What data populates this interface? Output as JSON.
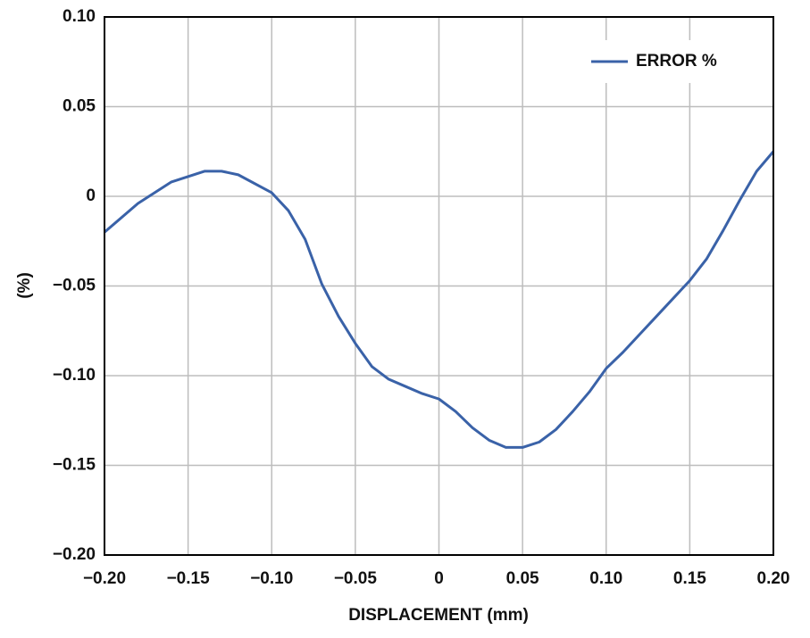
{
  "chart_data": {
    "type": "line",
    "xlabel": "DISPLACEMENT (mm)",
    "ylabel": "(%)",
    "x": [
      -0.2,
      -0.18,
      -0.16,
      -0.14,
      -0.13,
      -0.12,
      -0.1,
      -0.09,
      -0.08,
      -0.07,
      -0.06,
      -0.05,
      -0.04,
      -0.03,
      -0.02,
      -0.01,
      0,
      0.01,
      0.02,
      0.03,
      0.04,
      0.05,
      0.06,
      0.07,
      0.08,
      0.09,
      0.1,
      0.11,
      0.12,
      0.13,
      0.14,
      0.15,
      0.16,
      0.17,
      0.18,
      0.19,
      0.2
    ],
    "series": [
      {
        "name": "ERROR %",
        "color": "#3a62a8",
        "values": [
          -0.02,
          -0.004,
          0.008,
          0.014,
          0.014,
          0.012,
          0.002,
          -0.008,
          -0.024,
          -0.049,
          -0.067,
          -0.082,
          -0.095,
          -0.102,
          -0.106,
          -0.11,
          -0.113,
          -0.12,
          -0.129,
          -0.136,
          -0.14,
          -0.14,
          -0.137,
          -0.13,
          -0.12,
          -0.109,
          -0.096,
          -0.087,
          -0.077,
          -0.067,
          -0.057,
          -0.047,
          -0.035,
          -0.019,
          -0.002,
          0.014,
          0.025
        ]
      }
    ],
    "xlim": [
      -0.2,
      0.2
    ],
    "xticks": [
      {
        "value": -0.2,
        "label": "−0.20"
      },
      {
        "value": -0.15,
        "label": "−0.15"
      },
      {
        "value": -0.1,
        "label": "−0.10"
      },
      {
        "value": -0.05,
        "label": "−0.05"
      },
      0,
      0.05,
      {
        "value": 0.1,
        "label": "0.10"
      },
      0.15,
      {
        "value": 0.2,
        "label": "0.20"
      }
    ],
    "ylim": [
      -0.2,
      0.1
    ],
    "yticks": [
      {
        "value": -0.2,
        "label": "−0.20"
      },
      {
        "value": -0.15,
        "label": "−0.15"
      },
      {
        "value": -0.1,
        "label": "−0.10"
      },
      {
        "value": -0.05,
        "label": "−0.05"
      },
      0,
      0.05,
      {
        "value": 0.1,
        "label": "0.10"
      }
    ],
    "grid": true,
    "legend": "upper right"
  }
}
